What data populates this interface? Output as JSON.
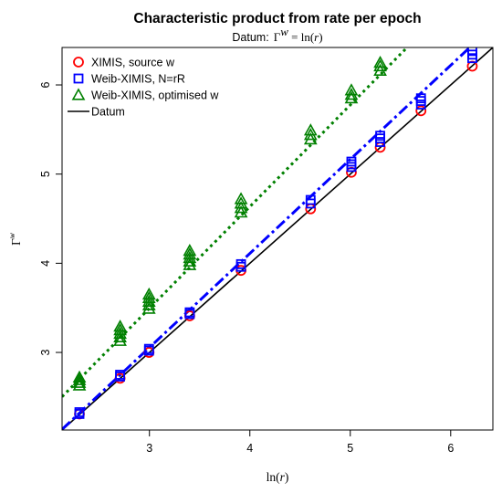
{
  "chart_data": {
    "type": "scatter",
    "title": "Characteristic product from rate per epoch",
    "subtitle": {
      "prefix": "Datum:",
      "gamma": "Γ",
      "gamma_sup": "w",
      "equals": " = ln(",
      "r": "r",
      "close": ")"
    },
    "xlabel": {
      "prefix": "ln(",
      "var": "r",
      "suffix": ")"
    },
    "ylabel": {
      "base": "Γ",
      "sup": "w"
    },
    "xlim": [
      2.13,
      6.42
    ],
    "ylim": [
      2.13,
      6.42
    ],
    "xticks": [
      3,
      4,
      5,
      6
    ],
    "yticks": [
      3,
      4,
      5,
      6
    ],
    "grid": false,
    "legend_position": "top-left",
    "legend": [
      {
        "label": "XIMIS, source w",
        "color": "#ff0000",
        "marker": "circle"
      },
      {
        "label": "Weib-XIMIS, N=rR",
        "color": "#0000ff",
        "marker": "square"
      },
      {
        "label": "Weib-XIMIS, optimised w",
        "color": "#008000",
        "marker": "triangle"
      },
      {
        "label": "Datum",
        "color": "#000000",
        "marker": "line"
      }
    ],
    "series": [
      {
        "name": "XIMIS, source w",
        "color": "#ff0000",
        "marker": "circle",
        "x": [
          2.303,
          2.708,
          2.996,
          3.401,
          3.912,
          4.605,
          5.011,
          5.298,
          5.704,
          6.215
        ],
        "y": [
          2.31,
          2.71,
          3.0,
          3.41,
          3.92,
          4.61,
          5.02,
          5.3,
          5.71,
          6.21
        ]
      },
      {
        "name": "Weib-XIMIS, N=rR",
        "color": "#0000ff",
        "marker": "square",
        "x": [
          2.303,
          2.303,
          2.708,
          2.708,
          2.996,
          2.996,
          3.401,
          3.401,
          3.912,
          3.912,
          4.605,
          4.605,
          5.011,
          5.011,
          5.011,
          5.298,
          5.298,
          5.298,
          5.704,
          5.704,
          5.704,
          6.215,
          6.215,
          6.215
        ],
        "y": [
          2.31,
          2.33,
          2.73,
          2.75,
          3.02,
          3.04,
          3.43,
          3.45,
          3.96,
          3.99,
          4.67,
          4.71,
          5.08,
          5.11,
          5.14,
          5.36,
          5.4,
          5.43,
          5.78,
          5.82,
          5.85,
          6.3,
          6.34,
          6.38
        ]
      },
      {
        "name": "Weib-XIMIS, optimised w",
        "color": "#008000",
        "marker": "triangle",
        "x": [
          2.303,
          2.303,
          2.303,
          2.303,
          2.708,
          2.708,
          2.708,
          2.708,
          2.708,
          2.996,
          2.996,
          2.996,
          2.996,
          2.996,
          3.401,
          3.401,
          3.401,
          3.401,
          3.401,
          3.912,
          3.912,
          3.912,
          3.912,
          4.605,
          4.605,
          4.605,
          5.011,
          5.011,
          5.011,
          5.298,
          5.298,
          5.298
        ],
        "y": [
          2.63,
          2.66,
          2.69,
          2.72,
          3.13,
          3.17,
          3.21,
          3.25,
          3.29,
          3.49,
          3.53,
          3.57,
          3.61,
          3.65,
          3.98,
          4.02,
          4.06,
          4.1,
          4.14,
          4.57,
          4.62,
          4.67,
          4.72,
          5.39,
          5.44,
          5.49,
          5.85,
          5.89,
          5.94,
          6.16,
          6.21,
          6.25
        ]
      }
    ],
    "lines": [
      {
        "name": "Datum",
        "color": "#000000",
        "style": "solid",
        "slope": 1.0,
        "intercept": 0.0
      },
      {
        "name": "Weib-XIMIS, N=rR fit",
        "color": "#0000ff",
        "style": "dashdot",
        "slope": 1.055,
        "intercept": -0.11
      },
      {
        "name": "Weib-XIMIS, optimised w fit",
        "color": "#008000",
        "style": "dotted",
        "slope": 1.14,
        "intercept": 0.075
      }
    ]
  }
}
